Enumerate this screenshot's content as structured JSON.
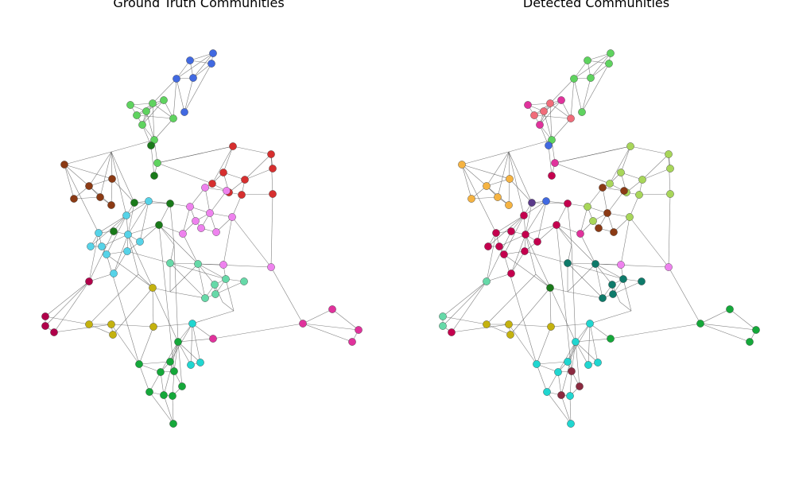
{
  "panels": [
    {
      "title": "Ground Truth Communities",
      "nodes": [
        [
          "A",
          "#4169e1"
        ],
        [
          "B",
          "#4169e1"
        ],
        [
          "C",
          "#4169e1"
        ],
        [
          "D",
          "#4169e1"
        ],
        [
          "E",
          "#4169e1"
        ],
        [
          "F",
          "#4169e1"
        ],
        [
          "G",
          "#5fd35f"
        ],
        [
          "H",
          "#5fd35f"
        ],
        [
          "I",
          "#5fd35f"
        ],
        [
          "J",
          "#5fd35f"
        ],
        [
          "K",
          "#5fd35f"
        ],
        [
          "L",
          "#5fd35f"
        ],
        [
          "M",
          "#5fd35f"
        ],
        [
          "N",
          "#5fd35f"
        ],
        [
          "O",
          "#5fd35f"
        ],
        [
          "P",
          "#8b3a14"
        ],
        [
          "Q",
          "#8b3a14"
        ],
        [
          "R",
          "#8b3a14"
        ],
        [
          "S",
          "#8b3a14"
        ],
        [
          "T",
          "#8b3a14"
        ],
        [
          "U",
          "#8b3a14"
        ],
        [
          "V",
          "#d62f2f"
        ],
        [
          "W",
          "#d62f2f"
        ],
        [
          "X",
          "#d62f2f"
        ],
        [
          "Y",
          "#d62f2f"
        ],
        [
          "Z",
          "#d62f2f"
        ],
        [
          "AA",
          "#d62f2f"
        ],
        [
          "AB",
          "#d62f2f"
        ],
        [
          "AC",
          "#d62f2f"
        ],
        [
          "AD",
          "#d62f2f"
        ],
        [
          "AE",
          "#ee82ee"
        ],
        [
          "AF",
          "#ee82ee"
        ],
        [
          "AG",
          "#ee82ee"
        ],
        [
          "AH",
          "#ee82ee"
        ],
        [
          "AI",
          "#ee82ee"
        ],
        [
          "AJ",
          "#ee82ee"
        ],
        [
          "AK",
          "#ee82ee"
        ],
        [
          "AL",
          "#ee82ee"
        ],
        [
          "AM",
          "#ee82ee"
        ],
        [
          "AN",
          "#1a7a1a"
        ],
        [
          "AO",
          "#1a7a1a"
        ],
        [
          "AP",
          "#1a7a1a"
        ],
        [
          "AQ",
          "#1a7a1a"
        ],
        [
          "AR",
          "#1a7a1a"
        ],
        [
          "AS",
          "#1a7a1a"
        ],
        [
          "AT",
          "#56d3e8"
        ],
        [
          "AU",
          "#56d3e8"
        ],
        [
          "AV",
          "#56d3e8"
        ],
        [
          "AW",
          "#56d3e8"
        ],
        [
          "AX",
          "#56d3e8"
        ],
        [
          "AY",
          "#56d3e8"
        ],
        [
          "AZ",
          "#56d3e8"
        ],
        [
          "BA",
          "#56d3e8"
        ],
        [
          "BB",
          "#56d3e8"
        ],
        [
          "BC",
          "#56d3e8"
        ],
        [
          "BD",
          "#66d9a8"
        ],
        [
          "BE",
          "#66d9a8"
        ],
        [
          "BF",
          "#66d9a8"
        ],
        [
          "BG",
          "#66d9a8"
        ],
        [
          "BH",
          "#66d9a8"
        ],
        [
          "BI",
          "#66d9a8"
        ],
        [
          "BJ",
          "#66d9a8"
        ],
        [
          "BK",
          "#ee82ee"
        ],
        [
          "BL",
          "#ee82ee"
        ],
        [
          "BM",
          "#b0004a"
        ],
        [
          "BN",
          "#b0004a"
        ],
        [
          "BO",
          "#b0004a"
        ],
        [
          "BP",
          "#b0004a"
        ],
        [
          "BQ",
          "#c4b20f"
        ],
        [
          "BR",
          "#c4b20f"
        ],
        [
          "BS",
          "#c4b20f"
        ],
        [
          "BT",
          "#c4b20f"
        ],
        [
          "BU",
          "#c4b20f"
        ],
        [
          "BV",
          "#e0329c"
        ],
        [
          "BW",
          "#e0329c"
        ],
        [
          "BX",
          "#e0329c"
        ],
        [
          "BY",
          "#e0329c"
        ],
        [
          "BZ",
          "#e0329c"
        ],
        [
          "CA",
          "#20d6d0"
        ],
        [
          "CB",
          "#20d6d0"
        ],
        [
          "CC",
          "#20d6d0"
        ],
        [
          "CD",
          "#15a83a"
        ],
        [
          "CE",
          "#15a83a"
        ],
        [
          "CF",
          "#15a83a"
        ],
        [
          "CG",
          "#15a83a"
        ],
        [
          "CH",
          "#15a83a"
        ],
        [
          "CI",
          "#15a83a"
        ],
        [
          "CJ",
          "#15a83a"
        ],
        [
          "CK",
          "#15a83a"
        ],
        [
          "CL",
          "#15a83a"
        ],
        [
          "CM",
          "#15a83a"
        ]
      ]
    },
    {
      "title": "Detected Communities",
      "nodes": [
        [
          "A",
          "#5fd35f"
        ],
        [
          "B",
          "#5fd35f"
        ],
        [
          "C",
          "#5fd35f"
        ],
        [
          "D",
          "#5fd35f"
        ],
        [
          "E",
          "#5fd35f"
        ],
        [
          "F",
          "#5fd35f"
        ],
        [
          "G",
          "#e0329c"
        ],
        [
          "H",
          "#f06c7a"
        ],
        [
          "I",
          "#e0329c"
        ],
        [
          "J",
          "#f06c7a"
        ],
        [
          "K",
          "#f06c7a"
        ],
        [
          "L",
          "#f06c7a"
        ],
        [
          "M",
          "#e0329c"
        ],
        [
          "N",
          "#5fd35f"
        ],
        [
          "O",
          "#e0329c"
        ],
        [
          "P",
          "#f5b342"
        ],
        [
          "Q",
          "#f5b342"
        ],
        [
          "R",
          "#f5b342"
        ],
        [
          "S",
          "#f5b342"
        ],
        [
          "T",
          "#f5b342"
        ],
        [
          "U",
          "#f5b342"
        ],
        [
          "V",
          "#a8d65a"
        ],
        [
          "W",
          "#a8d65a"
        ],
        [
          "X",
          "#a8d65a"
        ],
        [
          "Y",
          "#a8d65a"
        ],
        [
          "Z",
          "#a8d65a"
        ],
        [
          "AA",
          "#a8d65a"
        ],
        [
          "AB",
          "#a8d65a"
        ],
        [
          "AC",
          "#a8d65a"
        ],
        [
          "AD",
          "#a8d65a"
        ],
        [
          "AE",
          "#8b3a14"
        ],
        [
          "AF",
          "#8b3a14"
        ],
        [
          "AG",
          "#a8d65a"
        ],
        [
          "AH",
          "#8b3a14"
        ],
        [
          "AI",
          "#a8d65a"
        ],
        [
          "AJ",
          "#8b3a14"
        ],
        [
          "AK",
          "#e0329c"
        ],
        [
          "AL",
          "#8b3a14"
        ],
        [
          "AM",
          "#a8d65a"
        ],
        [
          "AN",
          "#4169e1"
        ],
        [
          "AO",
          "#c4004e"
        ],
        [
          "AP",
          "#5a3a8a"
        ],
        [
          "AQ",
          "#c4004e"
        ],
        [
          "AR",
          "#c4004e"
        ],
        [
          "AS",
          "#c4004e"
        ],
        [
          "AT",
          "#c4004e"
        ],
        [
          "AU",
          "#4169e1"
        ],
        [
          "AV",
          "#c4004e"
        ],
        [
          "AW",
          "#c4004e"
        ],
        [
          "AX",
          "#c4004e"
        ],
        [
          "AY",
          "#c4004e"
        ],
        [
          "AZ",
          "#c4004e"
        ],
        [
          "BA",
          "#c4004e"
        ],
        [
          "BB",
          "#c4004e"
        ],
        [
          "BC",
          "#c4004e"
        ],
        [
          "BD",
          "#0e7a6a"
        ],
        [
          "BE",
          "#0e7a6a"
        ],
        [
          "BF",
          "#0e7a6a"
        ],
        [
          "BG",
          "#0e7a6a"
        ],
        [
          "BH",
          "#0e7a6a"
        ],
        [
          "BI",
          "#0e7a6a"
        ],
        [
          "BJ",
          "#0e7a6a"
        ],
        [
          "BK",
          "#ee82ee"
        ],
        [
          "BL",
          "#ee82ee"
        ],
        [
          "BM",
          "#66d9a8"
        ],
        [
          "BN",
          "#66d9a8"
        ],
        [
          "BO",
          "#66d9a8"
        ],
        [
          "BP",
          "#c4004e"
        ],
        [
          "BQ",
          "#c4b20f"
        ],
        [
          "BR",
          "#c4b20f"
        ],
        [
          "BS",
          "#c4b20f"
        ],
        [
          "BT",
          "#c4b20f"
        ],
        [
          "BU",
          "#1a7a1a"
        ],
        [
          "BV",
          "#15a83a"
        ],
        [
          "BW",
          "#15a83a"
        ],
        [
          "BX",
          "#15a83a"
        ],
        [
          "BY",
          "#15a83a"
        ],
        [
          "BZ",
          "#15a83a"
        ],
        [
          "CA",
          "#20d6d0"
        ],
        [
          "CB",
          "#20d6d0"
        ],
        [
          "CC",
          "#20d6d0"
        ],
        [
          "CD",
          "#20d6d0"
        ],
        [
          "CE",
          "#20d6d0"
        ],
        [
          "CF",
          "#20d6d0"
        ],
        [
          "CG",
          "#8b2a40"
        ],
        [
          "CH",
          "#8b2a40"
        ],
        [
          "CI",
          "#20d6d0"
        ],
        [
          "CJ",
          "#8b2a40"
        ],
        [
          "CK",
          "#20d6d0"
        ],
        [
          "CL",
          "#20d6d0"
        ],
        [
          "CM",
          "#20d6d0"
        ]
      ]
    }
  ]
}
